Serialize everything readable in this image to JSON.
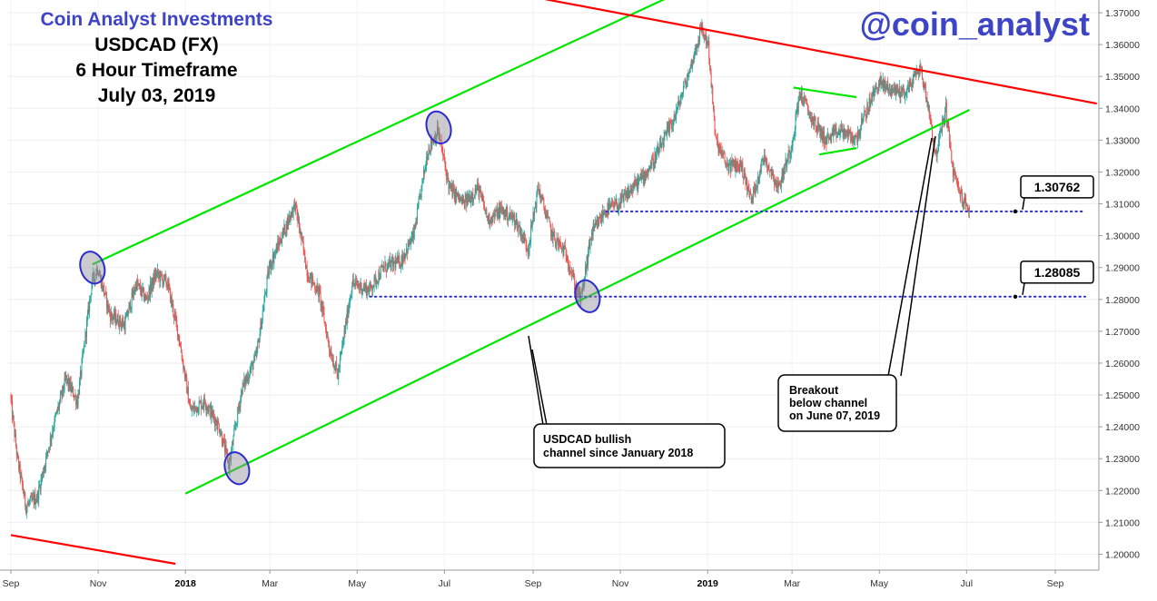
{
  "header": {
    "brand": "Coin Analyst Investments",
    "lines": [
      "USDCAD (FX)",
      "6 Hour Timeframe",
      "July 03, 2019"
    ],
    "handle": "@coin_analyst"
  },
  "chart_data": {
    "type": "candlestick",
    "symbol": "USDCAD",
    "timeframe": "6 Hour",
    "ylim": [
      1.195,
      1.374
    ],
    "y_ticks": [
      "1.20000",
      "1.21000",
      "1.22000",
      "1.23000",
      "1.24000",
      "1.25000",
      "1.26000",
      "1.27000",
      "1.28000",
      "1.29000",
      "1.30000",
      "1.31000",
      "1.32000",
      "1.33000",
      "1.34000",
      "1.35000",
      "1.36000",
      "1.37000"
    ],
    "x_ticks": [
      "Sep",
      "Nov",
      "2018",
      "Mar",
      "May",
      "Jul",
      "Sep",
      "Nov",
      "2019",
      "Mar",
      "May",
      "Jul",
      "Sep"
    ],
    "price_path": [
      [
        "2017-09-01",
        1.25
      ],
      [
        "2017-09-06",
        1.23
      ],
      [
        "2017-09-12",
        1.215
      ],
      [
        "2017-09-20",
        1.218
      ],
      [
        "2017-10-01",
        1.24
      ],
      [
        "2017-10-10",
        1.255
      ],
      [
        "2017-10-18",
        1.248
      ],
      [
        "2017-10-28",
        1.285
      ],
      [
        "2017-11-01",
        1.29
      ],
      [
        "2017-11-10",
        1.275
      ],
      [
        "2017-11-20",
        1.272
      ],
      [
        "2017-11-28",
        1.285
      ],
      [
        "2017-12-05",
        1.28
      ],
      [
        "2017-12-12",
        1.288
      ],
      [
        "2017-12-20",
        1.285
      ],
      [
        "2017-12-28",
        1.268
      ],
      [
        "2018-01-05",
        1.245
      ],
      [
        "2018-01-15",
        1.248
      ],
      [
        "2018-01-25",
        1.24
      ],
      [
        "2018-02-01",
        1.228
      ],
      [
        "2018-02-10",
        1.252
      ],
      [
        "2018-02-20",
        1.262
      ],
      [
        "2018-03-01",
        1.29
      ],
      [
        "2018-03-10",
        1.3
      ],
      [
        "2018-03-19",
        1.31
      ],
      [
        "2018-03-28",
        1.288
      ],
      [
        "2018-04-05",
        1.282
      ],
      [
        "2018-04-12",
        1.265
      ],
      [
        "2018-04-18",
        1.256
      ],
      [
        "2018-04-28",
        1.285
      ],
      [
        "2018-05-10",
        1.283
      ],
      [
        "2018-05-20",
        1.29
      ],
      [
        "2018-06-01",
        1.292
      ],
      [
        "2018-06-10",
        1.3
      ],
      [
        "2018-06-20",
        1.327
      ],
      [
        "2018-06-27",
        1.333
      ],
      [
        "2018-07-05",
        1.315
      ],
      [
        "2018-07-15",
        1.31
      ],
      [
        "2018-07-25",
        1.315
      ],
      [
        "2018-08-01",
        1.305
      ],
      [
        "2018-08-10",
        1.308
      ],
      [
        "2018-08-20",
        1.305
      ],
      [
        "2018-08-29",
        1.296
      ],
      [
        "2018-09-05",
        1.315
      ],
      [
        "2018-09-15",
        1.3
      ],
      [
        "2018-09-25",
        1.294
      ],
      [
        "2018-10-01",
        1.284
      ],
      [
        "2018-10-05",
        1.28
      ],
      [
        "2018-10-12",
        1.3
      ],
      [
        "2018-10-22",
        1.308
      ],
      [
        "2018-11-01",
        1.31
      ],
      [
        "2018-11-10",
        1.315
      ],
      [
        "2018-11-20",
        1.32
      ],
      [
        "2018-11-30",
        1.328
      ],
      [
        "2018-12-10",
        1.338
      ],
      [
        "2018-12-20",
        1.352
      ],
      [
        "2018-12-28",
        1.365
      ],
      [
        "2019-01-02",
        1.36
      ],
      [
        "2019-01-07",
        1.33
      ],
      [
        "2019-01-15",
        1.322
      ],
      [
        "2019-01-25",
        1.322
      ],
      [
        "2019-02-01",
        1.311
      ],
      [
        "2019-02-10",
        1.325
      ],
      [
        "2019-02-20",
        1.315
      ],
      [
        "2019-03-01",
        1.328
      ],
      [
        "2019-03-07",
        1.345
      ],
      [
        "2019-03-15",
        1.337
      ],
      [
        "2019-03-25",
        1.33
      ],
      [
        "2019-04-05",
        1.333
      ],
      [
        "2019-04-15",
        1.33
      ],
      [
        "2019-04-25",
        1.342
      ],
      [
        "2019-05-01",
        1.348
      ],
      [
        "2019-05-10",
        1.346
      ],
      [
        "2019-05-20",
        1.345
      ],
      [
        "2019-05-30",
        1.353
      ],
      [
        "2019-06-05",
        1.34
      ],
      [
        "2019-06-10",
        1.325
      ],
      [
        "2019-06-17",
        1.34
      ],
      [
        "2019-06-22",
        1.32
      ],
      [
        "2019-06-28",
        1.312
      ],
      [
        "2019-07-03",
        1.308
      ]
    ],
    "lines": [
      {
        "name": "channel-upper",
        "color": "#00e600",
        "from": [
          "2017-10-28",
          1.291
        ],
        "to": [
          "2018-12-03",
          1.3745
        ]
      },
      {
        "name": "channel-lower",
        "color": "#00e600",
        "from": [
          "2018-01-01",
          1.219
        ],
        "to": [
          "2019-07-03",
          1.3395
        ]
      },
      {
        "name": "resistance-upper",
        "color": "#ff0000",
        "from": [
          "2018-08-14",
          1.3765
        ],
        "to": [
          "2019-09-30",
          1.3415
        ]
      },
      {
        "name": "trend-lower-red",
        "color": "#ff0000",
        "from": [
          "2017-09-01",
          1.206
        ],
        "to": [
          "2017-12-25",
          1.197
        ]
      },
      {
        "name": "wedge-top",
        "color": "#00e600",
        "from": [
          "2019-03-02",
          1.3465
        ],
        "to": [
          "2019-04-15",
          1.3435
        ]
      },
      {
        "name": "wedge-bottom",
        "color": "#00e600",
        "from": [
          "2019-03-20",
          1.3255
        ],
        "to": [
          "2019-04-15",
          1.3275
        ]
      }
    ],
    "levels": [
      {
        "value_label": "1.30762",
        "value": 1.30762,
        "from": "2018-10-22"
      },
      {
        "value_label": "1.28085",
        "value": 1.28085,
        "from": "2018-05-10"
      }
    ],
    "touch_points": [
      [
        "2017-10-28",
        1.29
      ],
      [
        "2018-02-06",
        1.227
      ],
      [
        "2018-06-27",
        1.334
      ],
      [
        "2018-10-09",
        1.281
      ]
    ],
    "annotations": [
      {
        "text": [
          "USDCAD bullish",
          " channel since January 2018"
        ]
      },
      {
        "text": [
          "Breakout",
          "below channel",
          "on June 07, 2019"
        ]
      }
    ]
  }
}
